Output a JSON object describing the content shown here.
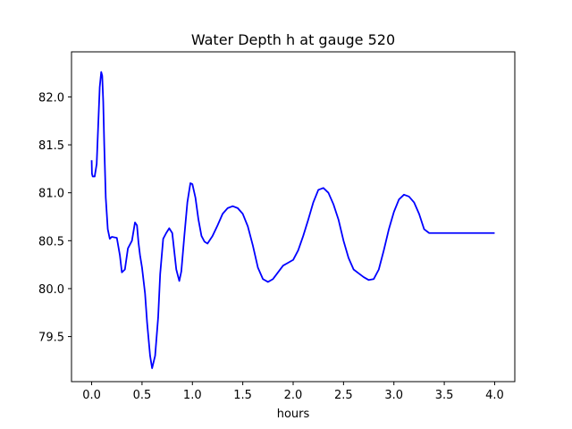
{
  "chart_data": {
    "type": "line",
    "title": "Water Depth h at gauge 520",
    "xlabel": "hours",
    "ylabel": "",
    "xlim": [
      -0.2,
      4.2
    ],
    "ylim": [
      79.03,
      82.47
    ],
    "xticks": [
      0.0,
      0.5,
      1.0,
      1.5,
      2.0,
      2.5,
      3.0,
      3.5,
      4.0
    ],
    "xtick_labels": [
      "0.0",
      "0.5",
      "1.0",
      "1.5",
      "2.0",
      "2.5",
      "3.0",
      "3.5",
      "4.0"
    ],
    "yticks": [
      79.5,
      80.0,
      80.5,
      81.0,
      81.5,
      82.0
    ],
    "ytick_labels": [
      "79.5",
      "80.0",
      "80.5",
      "81.0",
      "81.5",
      "82.0"
    ],
    "grid": false,
    "series": [
      {
        "color": "#0000ff",
        "x": [
          0.0,
          0.003,
          0.01,
          0.03,
          0.05,
          0.065,
          0.08,
          0.095,
          0.105,
          0.115,
          0.125,
          0.14,
          0.16,
          0.18,
          0.2,
          0.25,
          0.28,
          0.3,
          0.33,
          0.36,
          0.4,
          0.43,
          0.45,
          0.465,
          0.48,
          0.5,
          0.53,
          0.55,
          0.58,
          0.6,
          0.63,
          0.66,
          0.68,
          0.71,
          0.74,
          0.77,
          0.8,
          0.84,
          0.87,
          0.89,
          0.92,
          0.95,
          0.98,
          1.0,
          1.03,
          1.06,
          1.09,
          1.12,
          1.15,
          1.2,
          1.25,
          1.3,
          1.35,
          1.4,
          1.45,
          1.5,
          1.55,
          1.6,
          1.65,
          1.7,
          1.75,
          1.8,
          1.85,
          1.9,
          1.95,
          2.0,
          2.05,
          2.1,
          2.15,
          2.2,
          2.25,
          2.3,
          2.35,
          2.4,
          2.45,
          2.5,
          2.55,
          2.6,
          2.65,
          2.7,
          2.75,
          2.8,
          2.85,
          2.9,
          2.95,
          3.0,
          3.05,
          3.1,
          3.15,
          3.2,
          3.25,
          3.3,
          3.35,
          3.4,
          3.45,
          3.5,
          3.55,
          3.6,
          3.65,
          3.7,
          3.75,
          3.8,
          3.85,
          3.9,
          3.95,
          4.0
        ],
        "values": [
          81.34,
          81.2,
          81.17,
          81.17,
          81.3,
          81.7,
          82.1,
          82.26,
          82.22,
          81.95,
          81.5,
          80.95,
          80.62,
          80.52,
          80.54,
          80.53,
          80.35,
          80.17,
          80.2,
          80.42,
          80.5,
          80.69,
          80.66,
          80.48,
          80.35,
          80.22,
          79.95,
          79.65,
          79.3,
          79.17,
          79.3,
          79.7,
          80.15,
          80.52,
          80.58,
          80.63,
          80.58,
          80.2,
          80.08,
          80.18,
          80.55,
          80.9,
          81.1,
          81.09,
          80.95,
          80.72,
          80.55,
          80.49,
          80.47,
          80.55,
          80.66,
          80.78,
          80.84,
          80.86,
          80.84,
          80.78,
          80.65,
          80.45,
          80.22,
          80.1,
          80.07,
          80.1,
          80.17,
          80.24,
          80.27,
          80.3,
          80.4,
          80.55,
          80.72,
          80.9,
          81.03,
          81.05,
          81.0,
          80.88,
          80.72,
          80.5,
          80.32,
          80.2,
          80.16,
          80.12,
          80.09,
          80.1,
          80.2,
          80.4,
          80.62,
          80.8,
          80.93,
          80.98,
          80.96,
          80.9,
          80.78,
          80.62,
          80.58,
          80.58,
          80.58,
          80.58,
          80.58,
          80.58,
          80.58,
          80.58,
          80.58,
          80.58,
          80.58,
          80.58,
          80.58,
          80.58
        ]
      }
    ]
  }
}
